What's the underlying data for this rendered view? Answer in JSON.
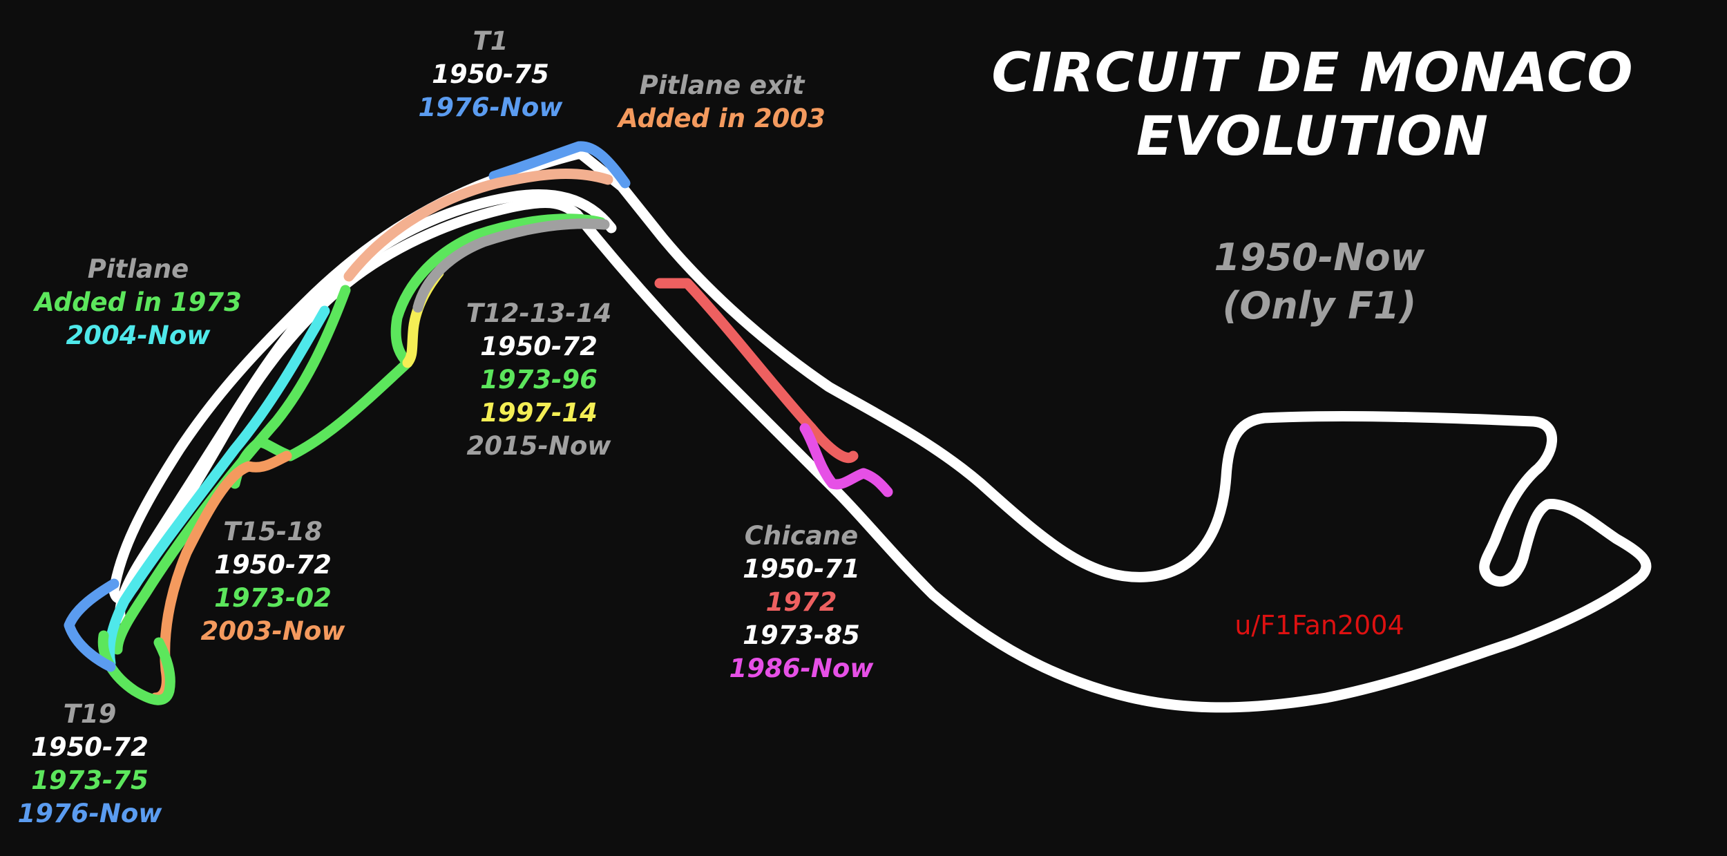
{
  "title_lines": [
    "CIRCUIT DE MONACO",
    "EVOLUTION"
  ],
  "subtitle_lines": [
    "1950-Now",
    "(Only F1)"
  ],
  "credit": "u/F1Fan2004",
  "colors": {
    "background": "#0d0d0d",
    "white": "#ffffff",
    "grey": "#a0a0a0",
    "blue": "#5b9cf0",
    "green": "#5ce65c",
    "cyan": "#4fe8ea",
    "orange": "#f49a5e",
    "salmon": "#f3b090",
    "yellow": "#f4ee55",
    "red": "#ee6060",
    "magenta": "#e650e6",
    "credit": "#dd1111"
  },
  "labels": [
    {
      "id": "t1",
      "lines": [
        {
          "text": "T1",
          "color": "grey"
        },
        {
          "text": "1950-75",
          "color": "white"
        },
        {
          "text": "1976-Now",
          "color": "blue"
        }
      ]
    },
    {
      "id": "pitlane-exit",
      "lines": [
        {
          "text": "Pitlane exit",
          "color": "grey"
        },
        {
          "text": "Added in 2003",
          "color": "orange"
        }
      ]
    },
    {
      "id": "pitlane",
      "lines": [
        {
          "text": "Pitlane",
          "color": "grey"
        },
        {
          "text": "Added in 1973",
          "color": "green"
        },
        {
          "text": "2004-Now",
          "color": "cyan"
        }
      ]
    },
    {
      "id": "t12-13-14",
      "lines": [
        {
          "text": "T12-13-14",
          "color": "grey"
        },
        {
          "text": "1950-72",
          "color": "white"
        },
        {
          "text": "1973-96",
          "color": "green"
        },
        {
          "text": "1997-14",
          "color": "yellow"
        },
        {
          "text": "2015-Now",
          "color": "grey"
        }
      ]
    },
    {
      "id": "t15-18",
      "lines": [
        {
          "text": "T15-18",
          "color": "grey"
        },
        {
          "text": "1950-72",
          "color": "white"
        },
        {
          "text": "1973-02",
          "color": "green"
        },
        {
          "text": "2003-Now",
          "color": "orange"
        }
      ]
    },
    {
      "id": "chicane",
      "lines": [
        {
          "text": "Chicane",
          "color": "grey"
        },
        {
          "text": "1950-71",
          "color": "white"
        },
        {
          "text": "1972",
          "color": "red"
        },
        {
          "text": "1973-85",
          "color": "white"
        },
        {
          "text": "1986-Now",
          "color": "magenta"
        }
      ]
    },
    {
      "id": "t19",
      "lines": [
        {
          "text": "T19",
          "color": "grey"
        },
        {
          "text": "1950-72",
          "color": "white"
        },
        {
          "text": "1973-75",
          "color": "green"
        },
        {
          "text": "1976-Now",
          "color": "blue"
        }
      ]
    }
  ]
}
